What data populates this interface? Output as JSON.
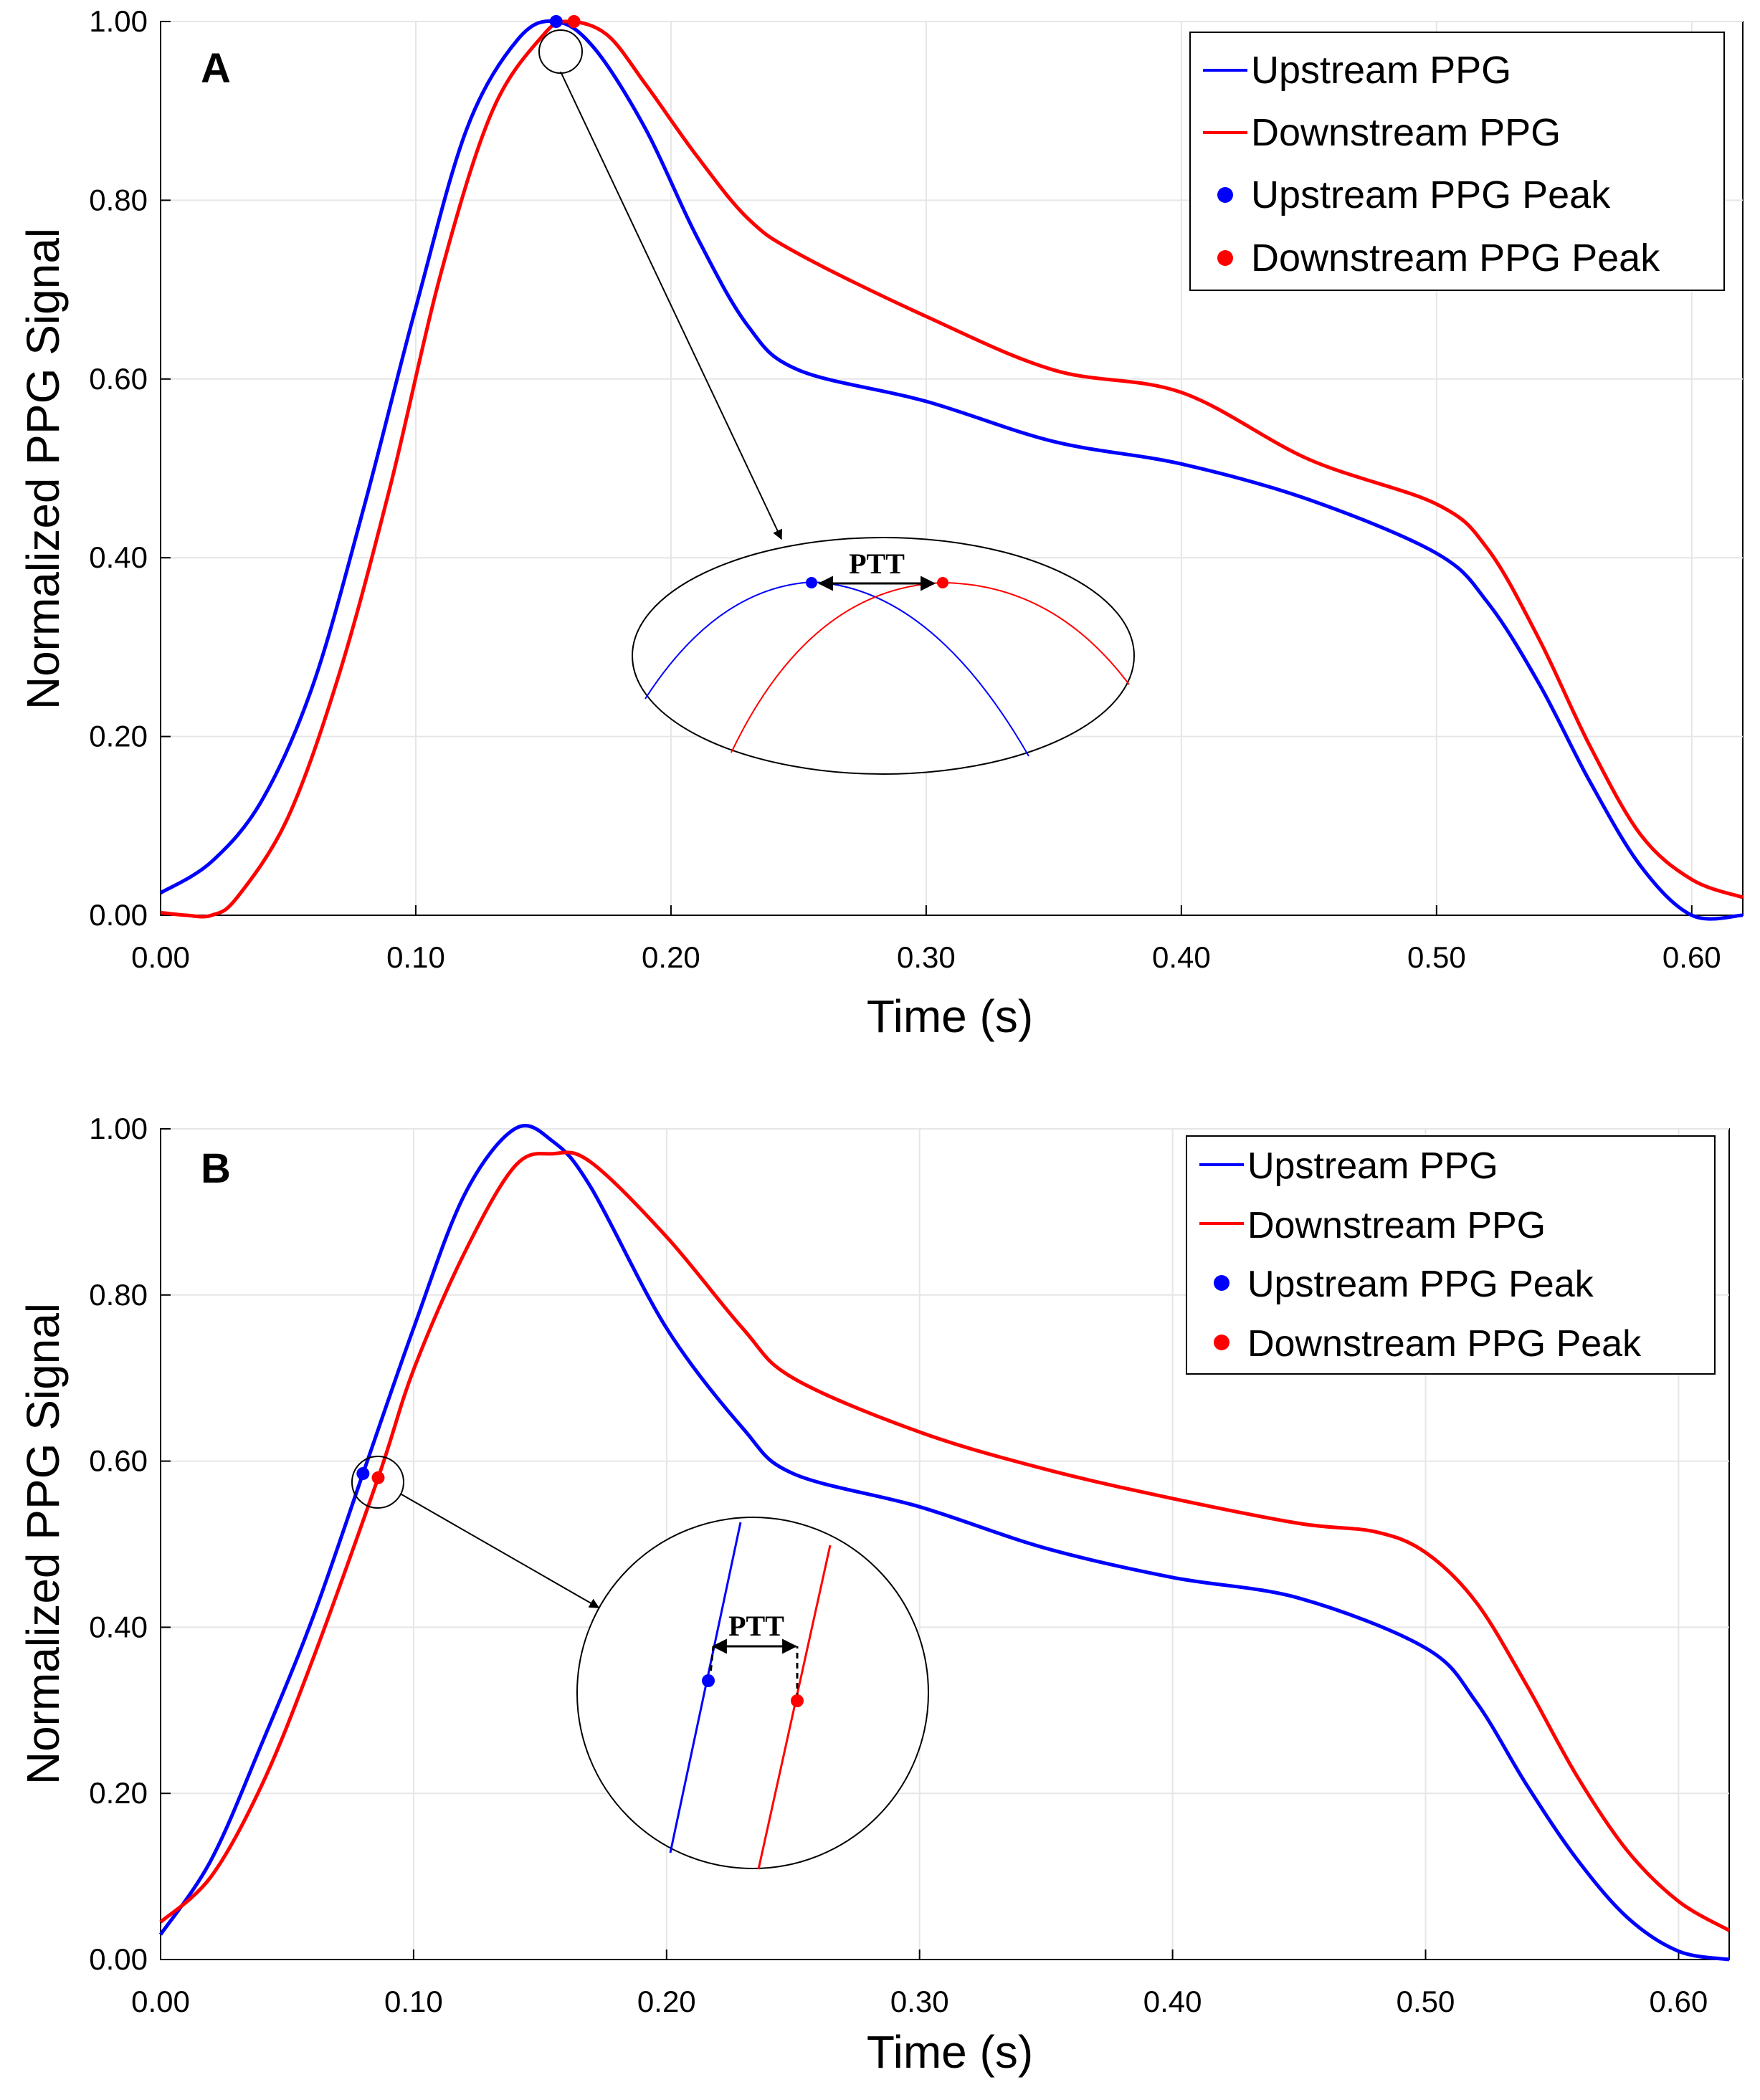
{
  "chart_data": [
    {
      "type": "line",
      "panel_label": "A",
      "xlabel": "Time (s)",
      "ylabel": "Normalized PPG Signal",
      "xlim": [
        0,
        0.62
      ],
      "ylim": [
        0,
        1.0
      ],
      "x_ticks": [
        "0.00",
        "0.10",
        "0.20",
        "0.30",
        "0.40",
        "0.50",
        "0.60"
      ],
      "y_ticks": [
        "0.00",
        "0.20",
        "0.40",
        "0.60",
        "0.80",
        "1.00"
      ],
      "grid": true,
      "legend_position": "top-right",
      "legend": [
        "Upstream PPG",
        "Downstream PPG",
        "Upstream PPG Peak",
        "Downstream PPG Peak"
      ],
      "series": [
        {
          "name": "Upstream PPG",
          "color": "#0000ff",
          "points": [
            [
              0.0,
              0.025
            ],
            [
              0.02,
              0.06
            ],
            [
              0.04,
              0.13
            ],
            [
              0.06,
              0.26
            ],
            [
              0.08,
              0.46
            ],
            [
              0.1,
              0.68
            ],
            [
              0.12,
              0.88
            ],
            [
              0.14,
              0.98
            ],
            [
              0.155,
              1.0
            ],
            [
              0.17,
              0.97
            ],
            [
              0.19,
              0.88
            ],
            [
              0.21,
              0.76
            ],
            [
              0.23,
              0.66
            ],
            [
              0.25,
              0.61
            ],
            [
              0.3,
              0.575
            ],
            [
              0.35,
              0.53
            ],
            [
              0.4,
              0.505
            ],
            [
              0.45,
              0.465
            ],
            [
              0.5,
              0.405
            ],
            [
              0.52,
              0.35
            ],
            [
              0.54,
              0.26
            ],
            [
              0.56,
              0.15
            ],
            [
              0.58,
              0.055
            ],
            [
              0.6,
              0.0
            ],
            [
              0.62,
              0.0
            ]
          ]
        },
        {
          "name": "Downstream PPG",
          "color": "#ff0000",
          "points": [
            [
              0.0,
              0.003
            ],
            [
              0.01,
              0.0
            ],
            [
              0.02,
              0.0
            ],
            [
              0.03,
              0.02
            ],
            [
              0.05,
              0.11
            ],
            [
              0.07,
              0.27
            ],
            [
              0.09,
              0.48
            ],
            [
              0.11,
              0.72
            ],
            [
              0.13,
              0.9
            ],
            [
              0.15,
              0.985
            ],
            [
              0.16,
              1.0
            ],
            [
              0.175,
              0.985
            ],
            [
              0.19,
              0.93
            ],
            [
              0.21,
              0.85
            ],
            [
              0.23,
              0.78
            ],
            [
              0.25,
              0.74
            ],
            [
              0.3,
              0.67
            ],
            [
              0.35,
              0.61
            ],
            [
              0.4,
              0.585
            ],
            [
              0.45,
              0.51
            ],
            [
              0.5,
              0.46
            ],
            [
              0.52,
              0.41
            ],
            [
              0.54,
              0.31
            ],
            [
              0.56,
              0.19
            ],
            [
              0.58,
              0.09
            ],
            [
              0.6,
              0.04
            ],
            [
              0.62,
              0.02
            ]
          ]
        },
        {
          "name": "Upstream PPG Peak",
          "color": "#0000ff",
          "x": 0.155,
          "y": 1.0
        },
        {
          "name": "Downstream PPG Peak",
          "color": "#ff0000",
          "x": 0.162,
          "y": 1.0
        }
      ],
      "annotations": [
        "PTT"
      ]
    },
    {
      "type": "line",
      "panel_label": "B",
      "xlabel": "Time (s)",
      "ylabel": "Normalized PPG Signal",
      "xlim": [
        0,
        0.62
      ],
      "ylim": [
        0,
        1.0
      ],
      "x_ticks": [
        "0.00",
        "0.10",
        "0.20",
        "0.30",
        "0.40",
        "0.50",
        "0.60"
      ],
      "y_ticks": [
        "0.00",
        "0.20",
        "0.40",
        "0.60",
        "0.80",
        "1.00"
      ],
      "grid": true,
      "legend_position": "top-right",
      "legend": [
        "Upstream PPG",
        "Downstream PPG",
        "Upstream PPG Peak",
        "Downstream PPG Peak"
      ],
      "series": [
        {
          "name": "Upstream PPG",
          "color": "#0000ff",
          "points": [
            [
              0.0,
              0.03
            ],
            [
              0.02,
              0.12
            ],
            [
              0.04,
              0.26
            ],
            [
              0.06,
              0.41
            ],
            [
              0.08,
              0.585
            ],
            [
              0.1,
              0.76
            ],
            [
              0.12,
              0.92
            ],
            [
              0.14,
              1.0
            ],
            [
              0.155,
              0.985
            ],
            [
              0.17,
              0.93
            ],
            [
              0.2,
              0.76
            ],
            [
              0.23,
              0.64
            ],
            [
              0.25,
              0.585
            ],
            [
              0.3,
              0.545
            ],
            [
              0.35,
              0.495
            ],
            [
              0.4,
              0.46
            ],
            [
              0.45,
              0.435
            ],
            [
              0.5,
              0.375
            ],
            [
              0.52,
              0.31
            ],
            [
              0.54,
              0.21
            ],
            [
              0.56,
              0.12
            ],
            [
              0.58,
              0.05
            ],
            [
              0.6,
              0.01
            ],
            [
              0.62,
              0.0
            ]
          ]
        },
        {
          "name": "Downstream PPG",
          "color": "#ff0000",
          "points": [
            [
              0.0,
              0.045
            ],
            [
              0.02,
              0.1
            ],
            [
              0.04,
              0.21
            ],
            [
              0.06,
              0.36
            ],
            [
              0.086,
              0.58
            ],
            [
              0.1,
              0.71
            ],
            [
              0.12,
              0.85
            ],
            [
              0.14,
              0.955
            ],
            [
              0.155,
              0.97
            ],
            [
              0.17,
              0.96
            ],
            [
              0.2,
              0.87
            ],
            [
              0.23,
              0.76
            ],
            [
              0.25,
              0.7
            ],
            [
              0.3,
              0.635
            ],
            [
              0.35,
              0.59
            ],
            [
              0.4,
              0.555
            ],
            [
              0.45,
              0.525
            ],
            [
              0.48,
              0.515
            ],
            [
              0.5,
              0.49
            ],
            [
              0.52,
              0.43
            ],
            [
              0.54,
              0.33
            ],
            [
              0.56,
              0.22
            ],
            [
              0.58,
              0.13
            ],
            [
              0.6,
              0.07
            ],
            [
              0.62,
              0.035
            ]
          ]
        },
        {
          "name": "Upstream PPG Peak",
          "color": "#0000ff",
          "x": 0.08,
          "y": 0.585
        },
        {
          "name": "Downstream PPG Peak",
          "color": "#ff0000",
          "x": 0.086,
          "y": 0.58
        }
      ],
      "annotations": [
        "PTT"
      ]
    }
  ]
}
